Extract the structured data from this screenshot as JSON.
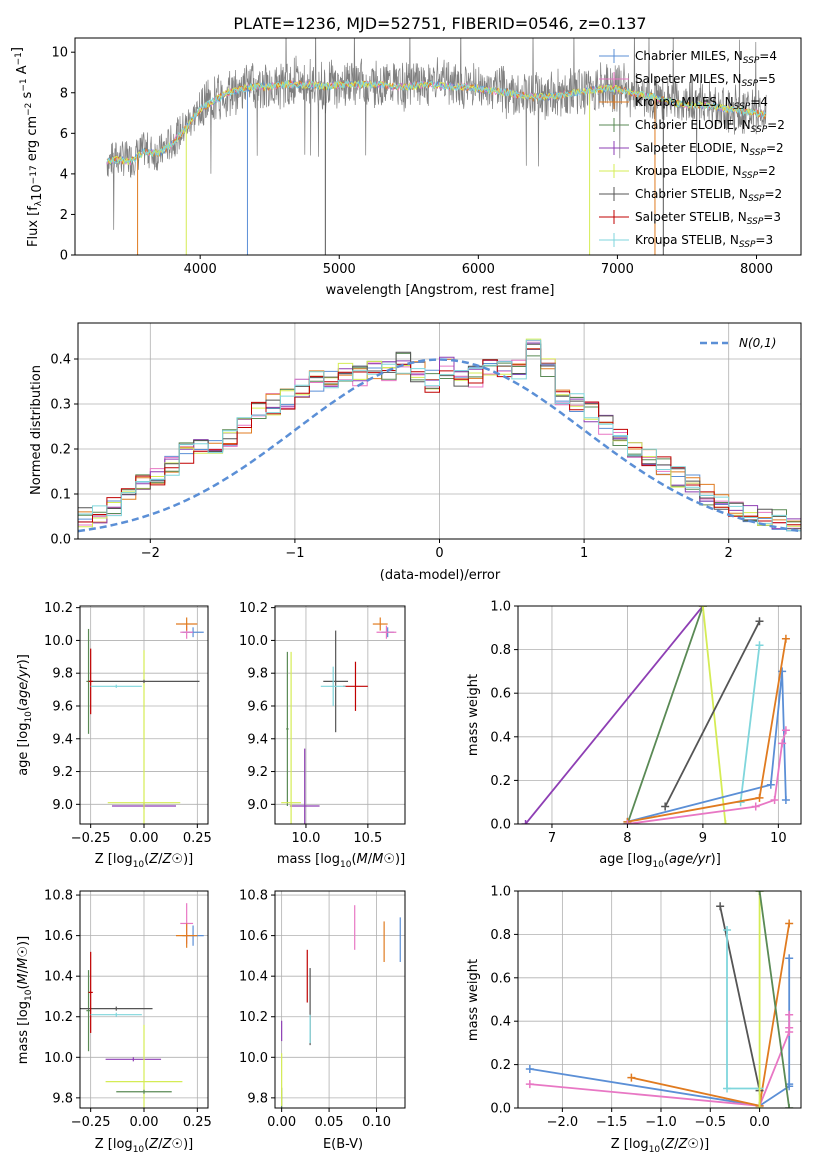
{
  "colors": {
    "c_chabrier_miles": "#5b8fd6",
    "c_salpeter_miles": "#e877c4",
    "c_kroupa_miles": "#e07b20",
    "c_chabrier_elodie": "#5a8a55",
    "c_salpeter_elodie": "#8e3fb4",
    "c_kroupa_elodie": "#d5ec55",
    "c_chabrier_stelib": "#555555",
    "c_salpeter_stelib": "#c00000",
    "c_kroupa_stelib": "#7fd6dc",
    "normal_curve": "#5b8fd6"
  },
  "legend_entries": [
    {
      "key": "c_chabrier_miles",
      "label": "Chabrier MILES, N",
      "sub": "SSP",
      "tail": "=4"
    },
    {
      "key": "c_salpeter_miles",
      "label": "Salpeter MILES, N",
      "sub": "SSP",
      "tail": "=5"
    },
    {
      "key": "c_kroupa_miles",
      "label": "Kroupa MILES, N",
      "sub": "SSP",
      "tail": "=4"
    },
    {
      "key": "c_chabrier_elodie",
      "label": "Chabrier ELODIE, N",
      "sub": "SSP",
      "tail": "=2"
    },
    {
      "key": "c_salpeter_elodie",
      "label": "Salpeter ELODIE, N",
      "sub": "SSP",
      "tail": "=2"
    },
    {
      "key": "c_kroupa_elodie",
      "label": "Kroupa ELODIE, N",
      "sub": "SSP",
      "tail": "=2"
    },
    {
      "key": "c_chabrier_stelib",
      "label": "Chabrier STELIB, N",
      "sub": "SSP",
      "tail": "=2"
    },
    {
      "key": "c_salpeter_stelib",
      "label": "Salpeter STELIB, N",
      "sub": "SSP",
      "tail": "=3"
    },
    {
      "key": "c_kroupa_stelib",
      "label": "Kroupa STELIB, N",
      "sub": "SSP",
      "tail": "=3"
    }
  ],
  "chart_data": [
    {
      "id": "spectrum",
      "type": "line",
      "title": "PLATE=1236, MJD=52751, FIBERID=0546, z=0.137",
      "xlabel": "wavelength [Angstrom, rest frame]",
      "ylabel_parts": [
        "Flux [f",
        "λ",
        "10",
        "−17",
        " erg cm",
        "−2",
        " s",
        "−1",
        " A",
        "−1",
        "]"
      ],
      "xlim": [
        3100,
        8320
      ],
      "ylim": [
        0,
        10.7
      ],
      "xticks": [
        4000,
        5000,
        6000,
        7000,
        8000
      ],
      "yticks": [
        0,
        2,
        4,
        6,
        8,
        10
      ],
      "grid": false,
      "legend_position": "right",
      "observed_flux_x": [
        3330,
        3400,
        3500,
        3600,
        3700,
        3800,
        3900,
        4000,
        4100,
        4200,
        4300,
        4400,
        4500,
        4600,
        4700,
        4800,
        4900,
        5000,
        5100,
        5200,
        5300,
        5400,
        5500,
        5600,
        5700,
        5800,
        5900,
        6000,
        6100,
        6200,
        6300,
        6400,
        6500,
        6600,
        6700,
        6800,
        6900,
        7000,
        7100,
        7200,
        7300,
        7400,
        7500,
        7600,
        7700,
        7800,
        7900,
        8000,
        8070
      ],
      "observed_flux_y": [
        4.6,
        4.8,
        4.7,
        5.2,
        5.0,
        5.6,
        6.4,
        7.2,
        7.6,
        8.0,
        8.3,
        8.4,
        8.3,
        8.4,
        8.5,
        8.4,
        8.3,
        8.4,
        8.5,
        8.4,
        8.5,
        8.4,
        8.3,
        8.4,
        8.5,
        8.4,
        8.3,
        8.3,
        8.2,
        8.0,
        7.9,
        7.9,
        7.8,
        7.9,
        8.0,
        8.2,
        8.3,
        8.3,
        8.1,
        7.9,
        7.7,
        7.6,
        7.4,
        7.5,
        7.3,
        7.2,
        7.1,
        7.0,
        6.8
      ],
      "model_flux_y": [
        4.6,
        4.7,
        4.6,
        5.1,
        5.0,
        5.5,
        6.3,
        7.2,
        7.6,
        8.0,
        8.2,
        8.3,
        8.3,
        8.4,
        8.4,
        8.4,
        8.3,
        8.4,
        8.4,
        8.4,
        8.4,
        8.3,
        8.3,
        8.4,
        8.4,
        8.3,
        8.3,
        8.2,
        8.1,
        8.0,
        7.9,
        7.8,
        7.8,
        7.9,
        8.0,
        8.1,
        8.2,
        8.2,
        8.0,
        7.9,
        7.7,
        7.5,
        7.4,
        7.4,
        7.3,
        7.2,
        7.1,
        7.0,
        6.9
      ]
    },
    {
      "id": "residuals",
      "type": "line",
      "xlabel": "(data-model)/error",
      "ylabel": "Normed distribution",
      "xlim": [
        -2.5,
        2.5
      ],
      "ylim": [
        0,
        0.48
      ],
      "xticks": [
        -2,
        -1,
        0,
        1,
        2
      ],
      "xtick_labels": [
        "−2",
        "−1",
        "0",
        "1",
        "2"
      ],
      "yticks": [
        0.0,
        0.1,
        0.2,
        0.3,
        0.4
      ],
      "ytick_labels": [
        "0.0",
        "0.1",
        "0.2",
        "0.3",
        "0.4"
      ],
      "grid": true,
      "legend_position": "top-right",
      "curve_label": "N(0,1)",
      "bin_width": 0.1,
      "hist_values": [
        0.02,
        0.025,
        0.03,
        0.035,
        0.04,
        0.05,
        0.06,
        0.07,
        0.09,
        0.12,
        0.14,
        0.16,
        0.19,
        0.2,
        0.21,
        0.22,
        0.26,
        0.29,
        0.3,
        0.31,
        0.33,
        0.35,
        0.36,
        0.37,
        0.36,
        0.38,
        0.37,
        0.39,
        0.37,
        0.35,
        0.38,
        0.36,
        0.36,
        0.38,
        0.37,
        0.38,
        0.43,
        0.38,
        0.32,
        0.3,
        0.28,
        0.25,
        0.22,
        0.2,
        0.18,
        0.16,
        0.14,
        0.12,
        0.1,
        0.08,
        0.07,
        0.06,
        0.05,
        0.04,
        0.03,
        0.025,
        0.02,
        0.02,
        0.02,
        0.02
      ]
    },
    {
      "id": "age_vs_Z",
      "type": "scatter",
      "xlabel": "Z [log10(Z/Z☉)]",
      "ylabel": "age  [log10(age/yr)]",
      "xlim": [
        -0.3,
        0.3
      ],
      "ylim": [
        8.88,
        10.21
      ],
      "xticks": [
        -0.25,
        0.0,
        0.25
      ],
      "xtick_labels": [
        "−0.25",
        "0.00",
        "0.25"
      ],
      "yticks": [
        9.0,
        9.2,
        9.4,
        9.6,
        9.8,
        10.0,
        10.2
      ],
      "ytick_labels": [
        "9.0",
        "9.2",
        "9.4",
        "9.6",
        "9.8",
        "10.0",
        "10.2"
      ],
      "grid": true,
      "points": [
        {
          "c": "c_chabrier_miles",
          "x": 0.23,
          "y": 10.05,
          "xerr": 0.05,
          "yerr": 0.03
        },
        {
          "c": "c_salpeter_miles",
          "x": 0.2,
          "y": 10.05,
          "xerr": 0.03,
          "yerr": 0.04
        },
        {
          "c": "c_kroupa_miles",
          "x": 0.2,
          "y": 10.1,
          "xerr": 0.05,
          "yerr": 0.04
        },
        {
          "c": "c_chabrier_elodie",
          "x": -0.26,
          "y": 9.75,
          "xerr": 0.01,
          "yerr": 0.32
        },
        {
          "c": "c_salpeter_elodie",
          "x": 0.0,
          "y": 8.99,
          "xerr": 0.15,
          "yerr": 0.02
        },
        {
          "c": "c_kroupa_elodie",
          "x": 0.0,
          "y": 9.01,
          "xerr": 0.17,
          "yerr": 0.93
        },
        {
          "c": "c_chabrier_stelib",
          "x": 0.0,
          "y": 9.75,
          "xerr": 0.26,
          "yerr": 0.01
        },
        {
          "c": "c_salpeter_stelib",
          "x": -0.25,
          "y": 9.75,
          "xerr": 0.01,
          "yerr": 0.2
        },
        {
          "c": "c_kroupa_stelib",
          "x": -0.13,
          "y": 9.72,
          "xerr": 0.12,
          "yerr": 0.01
        }
      ]
    },
    {
      "id": "age_vs_mass",
      "type": "scatter",
      "xlabel": "mass [log10(M/M☉)]",
      "xlim": [
        9.75,
        10.8
      ],
      "ylim": [
        8.88,
        10.21
      ],
      "xticks": [
        10.0,
        10.5
      ],
      "xtick_labels": [
        "10.0",
        "10.5"
      ],
      "yticks": [
        9.0,
        9.2,
        9.4,
        9.6,
        9.8,
        10.0,
        10.2
      ],
      "ytick_labels": [
        "9.0",
        "9.2",
        "9.4",
        "9.6",
        "9.8",
        "10.0",
        "10.2"
      ],
      "grid": true,
      "points": [
        {
          "c": "c_chabrier_miles",
          "x": 10.66,
          "y": 10.05,
          "xerr": 0.05,
          "yerr": 0.03
        },
        {
          "c": "c_salpeter_miles",
          "x": 10.65,
          "y": 10.05,
          "xerr": 0.08,
          "yerr": 0.04
        },
        {
          "c": "c_kroupa_miles",
          "x": 10.6,
          "y": 10.1,
          "xerr": 0.06,
          "yerr": 0.04
        },
        {
          "c": "c_chabrier_elodie",
          "x": 9.85,
          "y": 9.46,
          "xerr": 0.01,
          "yerr": 0.47
        },
        {
          "c": "c_salpeter_elodie",
          "x": 9.99,
          "y": 8.99,
          "xerr": 0.12,
          "yerr": 0.35
        },
        {
          "c": "c_kroupa_elodie",
          "x": 9.88,
          "y": 9.01,
          "xerr": 0.08,
          "yerr": 0.92
        },
        {
          "c": "c_chabrier_stelib",
          "x": 10.24,
          "y": 9.75,
          "xerr": 0.1,
          "yerr": 0.31
        },
        {
          "c": "c_salpeter_stelib",
          "x": 10.4,
          "y": 9.72,
          "xerr": 0.1,
          "yerr": 0.15
        },
        {
          "c": "c_kroupa_stelib",
          "x": 10.22,
          "y": 9.72,
          "xerr": 0.1,
          "yerr": 0.12
        }
      ]
    },
    {
      "id": "weight_vs_age",
      "type": "line",
      "xlabel": "age  [log10(age/yr)]",
      "ylabel": "mass weight",
      "xlim": [
        6.55,
        10.3
      ],
      "ylim": [
        0,
        1
      ],
      "xticks": [
        7,
        8,
        9,
        10
      ],
      "xtick_labels": [
        "7",
        "8",
        "9",
        "10"
      ],
      "yticks": [
        0.0,
        0.2,
        0.4,
        0.6,
        0.8,
        1.0
      ],
      "ytick_labels": [
        "0.0",
        "0.2",
        "0.4",
        "0.6",
        "0.8",
        "1.0"
      ],
      "grid": true,
      "series": [
        {
          "c": "c_salpeter_elodie",
          "x": [
            6.65,
            9.0
          ],
          "y": [
            0.0,
            1.0
          ]
        },
        {
          "c": "c_chabrier_elodie",
          "x": [
            8.0,
            9.0
          ],
          "y": [
            0.0,
            1.0
          ]
        },
        {
          "c": "c_kroupa_elodie",
          "x": [
            9.0,
            9.3
          ],
          "y": [
            1.0,
            0.0
          ]
        },
        {
          "c": "c_chabrier_stelib",
          "x": [
            8.5,
            9.75
          ],
          "y": [
            0.08,
            0.93
          ]
        },
        {
          "c": "c_kroupa_stelib",
          "x": [
            9.5,
            9.75
          ],
          "y": [
            0.1,
            0.82
          ]
        },
        {
          "c": "c_chabrier_miles",
          "x": [
            8.0,
            9.9,
            10.05,
            10.1
          ],
          "y": [
            0.01,
            0.18,
            0.7,
            0.11
          ]
        },
        {
          "c": "c_kroupa_miles",
          "x": [
            8.0,
            9.75,
            10.1
          ],
          "y": [
            0.01,
            0.12,
            0.85
          ]
        },
        {
          "c": "c_salpeter_miles",
          "x": [
            8.0,
            9.7,
            9.95,
            10.05,
            10.1
          ],
          "y": [
            0.0,
            0.08,
            0.11,
            0.37,
            0.43
          ]
        }
      ]
    },
    {
      "id": "mass_vs_Z",
      "type": "scatter",
      "xlabel": "Z [log10(Z/Z☉)]",
      "ylabel": "mass [log10(M/M☉)]",
      "xlim": [
        -0.3,
        0.3
      ],
      "ylim": [
        9.75,
        10.82
      ],
      "xticks": [
        -0.25,
        0.0,
        0.25
      ],
      "xtick_labels": [
        "−0.25",
        "0.00",
        "0.25"
      ],
      "yticks": [
        9.8,
        10.0,
        10.2,
        10.4,
        10.6,
        10.8
      ],
      "ytick_labels": [
        "9.8",
        "10.0",
        "10.2",
        "10.4",
        "10.6",
        "10.8"
      ],
      "grid": true,
      "points": [
        {
          "c": "c_chabrier_miles",
          "x": 0.23,
          "y": 10.6,
          "xerr": 0.05,
          "yerr": 0.05
        },
        {
          "c": "c_salpeter_miles",
          "x": 0.2,
          "y": 10.66,
          "xerr": 0.03,
          "yerr": 0.1
        },
        {
          "c": "c_kroupa_miles",
          "x": 0.2,
          "y": 10.6,
          "xerr": 0.05,
          "yerr": 0.06
        },
        {
          "c": "c_chabrier_elodie",
          "x": -0.26,
          "y": 10.23,
          "xerr": 0.01,
          "yerr": 0.2
        },
        {
          "c": "c_salpeter_elodie",
          "x": -0.05,
          "y": 9.99,
          "xerr": 0.13,
          "yerr": 0.01
        },
        {
          "c": "c_kroupa_elodie",
          "x": 0.0,
          "y": 9.88,
          "xerr": 0.18,
          "yerr": 0.28
        },
        {
          "c": "c_chabrier_stelib",
          "x": -0.13,
          "y": 10.24,
          "xerr": 0.17,
          "yerr": 0.01
        },
        {
          "c": "c_salpeter_stelib",
          "x": -0.25,
          "y": 10.32,
          "xerr": 0.01,
          "yerr": 0.2
        },
        {
          "c": "c_kroupa_stelib",
          "x": -0.13,
          "y": 10.21,
          "xerr": 0.12,
          "yerr": 0.01
        },
        {
          "c": "c_chabrier_elodie",
          "x": 0.0,
          "y": 9.83,
          "xerr": 0.13,
          "yerr": 0.01
        }
      ]
    },
    {
      "id": "mass_vs_ebv",
      "type": "scatter",
      "xlabel": "E(B-V)",
      "xlim": [
        -0.007,
        0.13
      ],
      "ylim": [
        9.75,
        10.82
      ],
      "xticks": [
        0.0,
        0.05,
        0.1
      ],
      "xtick_labels": [
        "0.00",
        "0.05",
        "0.10"
      ],
      "yticks": [
        9.8,
        10.0,
        10.2,
        10.4,
        10.6,
        10.8
      ],
      "ytick_labels": [
        "9.8",
        "10.0",
        "10.2",
        "10.4",
        "10.6",
        "10.8"
      ],
      "grid": true,
      "points": [
        {
          "c": "c_chabrier_miles",
          "x": 0.125,
          "y": 10.58,
          "xerr": 0.0,
          "yerr": 0.11
        },
        {
          "c": "c_salpeter_miles",
          "x": 0.077,
          "y": 10.64,
          "xerr": 0.0,
          "yerr": 0.11
        },
        {
          "c": "c_kroupa_miles",
          "x": 0.108,
          "y": 10.57,
          "xerr": 0.0,
          "yerr": 0.1
        },
        {
          "c": "c_chabrier_elodie",
          "x": 0.0,
          "y": 9.8,
          "xerr": 0.0,
          "yerr": 0.05
        },
        {
          "c": "c_salpeter_elodie",
          "x": 0.0,
          "y": 10.13,
          "xerr": 0.0,
          "yerr": 0.05
        },
        {
          "c": "c_kroupa_elodie",
          "x": 0.0,
          "y": 9.89,
          "xerr": 0.0,
          "yerr": 0.13
        },
        {
          "c": "c_chabrier_stelib",
          "x": 0.03,
          "y": 10.25,
          "xerr": 0.0,
          "yerr": 0.19
        },
        {
          "c": "c_salpeter_stelib",
          "x": 0.027,
          "y": 10.4,
          "xerr": 0.0,
          "yerr": 0.13
        },
        {
          "c": "c_kroupa_stelib",
          "x": 0.03,
          "y": 10.14,
          "xerr": 0.0,
          "yerr": 0.07
        }
      ]
    },
    {
      "id": "weight_vs_Z",
      "type": "line",
      "xlabel": "Z [log10(Z/Z☉)]",
      "ylabel": "mass weight",
      "xlim": [
        -2.45,
        0.42
      ],
      "ylim": [
        0,
        1
      ],
      "xticks": [
        -2.0,
        -1.5,
        -1.0,
        -0.5,
        0.0
      ],
      "xtick_labels": [
        "−2.0",
        "−1.5",
        "−1.0",
        "−0.5",
        "0.0"
      ],
      "yticks": [
        0.0,
        0.2,
        0.4,
        0.6,
        0.8,
        1.0
      ],
      "ytick_labels": [
        "0.0",
        "0.2",
        "0.4",
        "0.6",
        "0.8",
        "1.0"
      ],
      "grid": true,
      "series": [
        {
          "c": "c_chabrier_miles",
          "x": [
            -2.33,
            0.0,
            0.3,
            0.3,
            0.3
          ],
          "y": [
            0.18,
            0.01,
            0.1,
            0.69,
            0.11
          ]
        },
        {
          "c": "c_salpeter_miles",
          "x": [
            -2.33,
            0.0,
            0.3,
            0.3,
            0.3
          ],
          "y": [
            0.11,
            0.01,
            0.35,
            0.43,
            0.37
          ]
        },
        {
          "c": "c_kroupa_miles",
          "x": [
            -1.3,
            0.0,
            0.3
          ],
          "y": [
            0.14,
            0.01,
            0.85
          ]
        },
        {
          "c": "c_chabrier_stelib",
          "x": [
            -0.4,
            0.0
          ],
          "y": [
            0.93,
            0.08
          ]
        },
        {
          "c": "c_kroupa_stelib",
          "x": [
            -0.33,
            -0.33,
            0.0
          ],
          "y": [
            0.82,
            0.09,
            0.09
          ]
        },
        {
          "c": "c_kroupa_elodie",
          "x": [
            0.0,
            0.0
          ],
          "y": [
            1.0,
            0.0
          ]
        },
        {
          "c": "c_chabrier_elodie",
          "x": [
            0.0,
            0.3
          ],
          "y": [
            1.0,
            0.0
          ]
        }
      ]
    }
  ]
}
